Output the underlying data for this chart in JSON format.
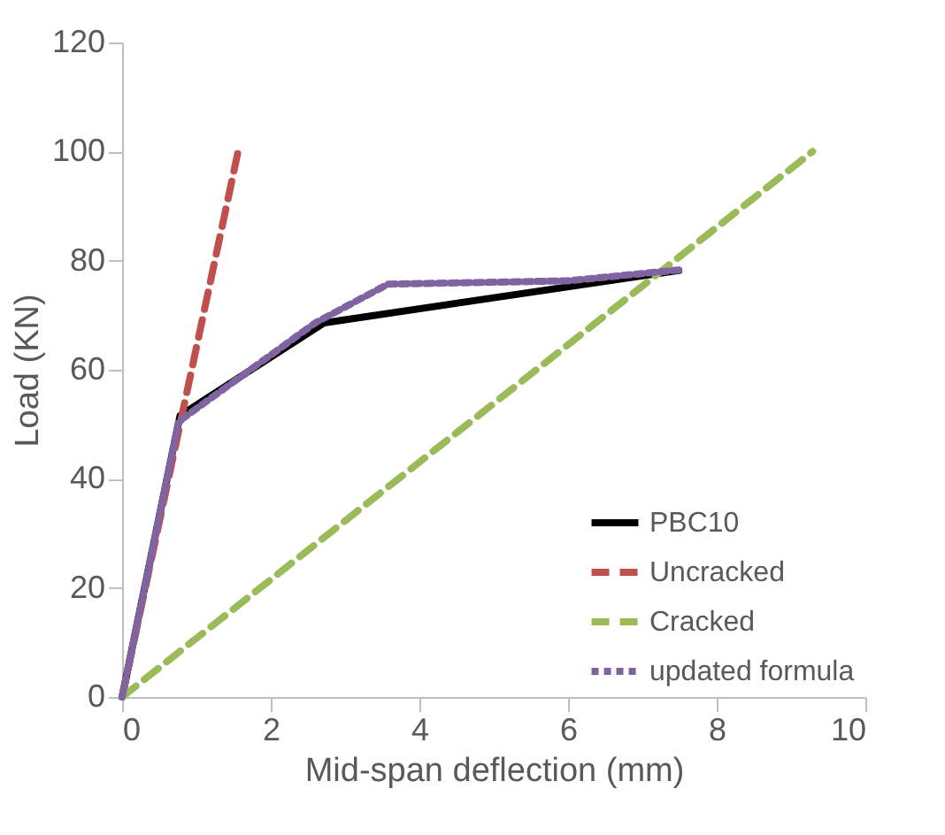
{
  "chart_data": {
    "type": "line",
    "xlabel": "Mid-span deflection (mm)",
    "ylabel": "Load (KN)",
    "xlim": [
      0,
      10
    ],
    "xticks": [
      0,
      2,
      4,
      6,
      8,
      10
    ],
    "ylim": [
      0,
      120
    ],
    "yticks": [
      0,
      20,
      40,
      60,
      80,
      100,
      120
    ],
    "grid": false,
    "legend": "bottom right",
    "marker": "none",
    "series": [
      {
        "name": "PBC10",
        "color": "#000000",
        "line_style": "solid",
        "x": [
          0,
          0.78,
          2.72,
          7.49
        ],
        "values": [
          0,
          51.6,
          68.6,
          78.2
        ]
      },
      {
        "name": "Uncracked",
        "color": "#c0504d",
        "line_style": "dashed",
        "x": [
          0,
          1.56
        ],
        "values": [
          0,
          100
        ]
      },
      {
        "name": "Cracked",
        "color": "#9bbb59",
        "line_style": "dashed",
        "x": [
          0,
          9.29
        ],
        "values": [
          0,
          100
        ]
      },
      {
        "name": "updated formula",
        "color": "#8064a2",
        "line_style": "dotted",
        "x": [
          0,
          0.76,
          2.6,
          3.58,
          6.0,
          7.49
        ],
        "values": [
          0,
          50.5,
          68.6,
          75.7,
          76.3,
          78.3
        ]
      }
    ]
  }
}
